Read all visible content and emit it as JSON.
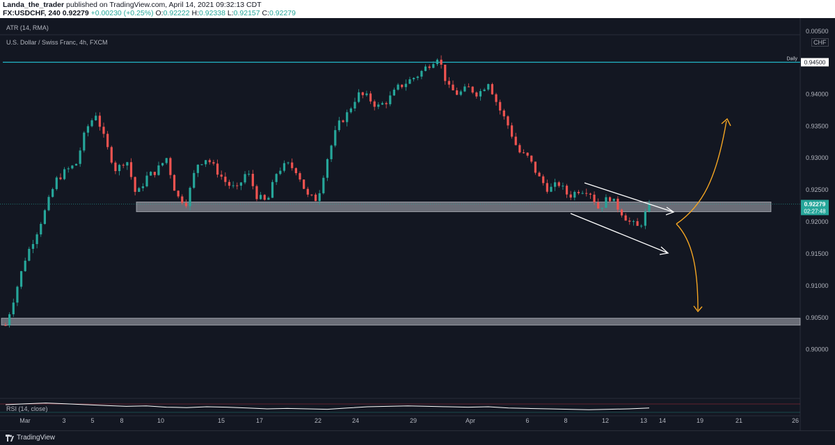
{
  "header": {
    "author": "Landa_the_trader",
    "published": "published on TradingView.com, April 14, 2021 09:32:13 CDT",
    "symbol": "FX:USDCHF, 240",
    "price": "0.92279",
    "change": "+0.00230 (+0.25%)",
    "o_label": "O:",
    "o_value": "0.92222",
    "h_label": "H:",
    "h_value": "0.92338",
    "l_label": "L:",
    "l_value": "0.92157",
    "c_label": "C:",
    "c_value": "0.92279"
  },
  "indicators": {
    "atr_label": "ATR (14, RMA)",
    "atr_value": "0.00500",
    "chart_title": "U.S. Dollar / Swiss Franc, 4h, FXCM",
    "currency": "CHF",
    "rsi_label": "RSI (14, close)"
  },
  "annotations": {
    "daily_label": "Daily",
    "daily_price": "0.94500",
    "last_price": "0.92279",
    "countdown": "02:27:48"
  },
  "footer": {
    "brand": "TradingView"
  },
  "colors": {
    "background": "#131722",
    "up": "#26a69a",
    "down": "#ef5350",
    "daily_line": "#22b8c9",
    "zone": "#b2b5be",
    "projection": "#f5a623",
    "channel": "#ffffff"
  },
  "chart_data": {
    "type": "candlestick",
    "symbol": "FX:USDCHF",
    "timeframe": "4h",
    "ylim": [
      0.8955,
      0.9505
    ],
    "y_ticks": [
      0.9,
      0.905,
      0.91,
      0.915,
      0.92,
      0.925,
      0.93,
      0.935,
      0.94
    ],
    "x_ticks": [
      "Mar",
      "3",
      "5",
      "8",
      "10",
      "15",
      "17",
      "22",
      "24",
      "29",
      "Apr",
      "6",
      "8",
      "12",
      "13",
      "14",
      "19",
      "21",
      "26"
    ],
    "daily_resistance": 0.945,
    "support_zones": [
      [
        0.9215,
        0.923
      ],
      [
        0.904,
        0.9048
      ]
    ],
    "last_price": 0.92279,
    "path": [
      0.9038,
      0.909,
      0.9145,
      0.918,
      0.922,
      0.9265,
      0.928,
      0.929,
      0.9345,
      0.937,
      0.932,
      0.928,
      0.93,
      0.924,
      0.927,
      0.928,
      0.93,
      0.924,
      0.923,
      0.929,
      0.93,
      0.928,
      0.926,
      0.925,
      0.928,
      0.924,
      0.923,
      0.928,
      0.929,
      0.928,
      0.924,
      0.9235,
      0.93,
      0.935,
      0.937,
      0.94,
      0.9395,
      0.938,
      0.939,
      0.941,
      0.942,
      0.943,
      0.9445,
      0.946,
      0.941,
      0.94,
      0.941,
      0.94,
      0.942,
      0.938,
      0.935,
      0.931,
      0.93,
      0.927,
      0.925,
      0.926,
      0.924,
      0.925,
      0.925,
      0.922,
      0.924,
      0.922,
      0.92,
      0.919,
      0.9228
    ],
    "rsi": [
      60,
      62,
      64,
      62,
      60,
      58,
      56,
      57,
      54,
      53,
      55,
      54,
      52,
      50,
      51,
      50,
      49,
      52,
      55,
      56,
      57,
      56,
      55,
      54,
      55,
      52,
      51,
      50,
      49,
      48,
      49,
      50,
      52
    ]
  }
}
